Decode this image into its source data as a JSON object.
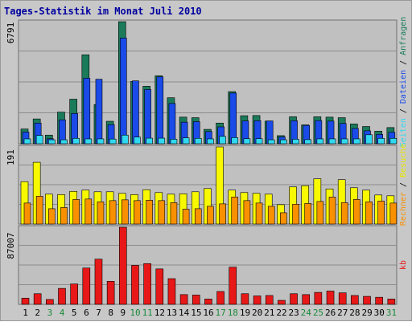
{
  "chart_data": {
    "type": "bar",
    "title": "Tages-Statistik im Monat Juli 2010",
    "x": [
      1,
      2,
      3,
      4,
      5,
      6,
      7,
      8,
      9,
      10,
      11,
      12,
      13,
      14,
      15,
      16,
      17,
      18,
      19,
      20,
      21,
      22,
      23,
      24,
      25,
      26,
      27,
      28,
      29,
      30,
      31
    ],
    "weekend_days": [
      3,
      4,
      10,
      11,
      17,
      18,
      24,
      25,
      31
    ],
    "panels": [
      {
        "id": "top",
        "max_label": "6791",
        "ymax": 6791,
        "series": [
          {
            "name": "Anfragen",
            "color": "#1a7a5a",
            "values": [
              820,
              1380,
              480,
              1760,
              2480,
              4950,
              2180,
              1250,
              6791,
              3470,
              3200,
              3780,
              2560,
              1480,
              1450,
              800,
              1150,
              2900,
              1560,
              1570,
              1260,
              450,
              1500,
              1050,
              1500,
              1480,
              1450,
              1100,
              960,
              700,
              900
            ]
          },
          {
            "name": "Dateien",
            "color": "#1a4ae8",
            "values": [
              650,
              1150,
              280,
              1330,
              1680,
              3650,
              3590,
              1060,
              5880,
              3500,
              3020,
              3720,
              2240,
              1200,
              1230,
              680,
              940,
              2820,
              1270,
              1280,
              1270,
              380,
              1280,
              1020,
              1290,
              1260,
              1130,
              850,
              720,
              520,
              640
            ]
          },
          {
            "name": "Seiten",
            "color": "#30d8f0",
            "values": [
              270,
              460,
              220,
              220,
              300,
              270,
              270,
              260,
              480,
              370,
              310,
              310,
              250,
              330,
              300,
              270,
              410,
              340,
              280,
              280,
              220,
              220,
              250,
              230,
              270,
              270,
              270,
              270,
              500,
              300,
              300
            ]
          }
        ]
      },
      {
        "id": "mid",
        "max_label": "191",
        "ymax": 191,
        "series": [
          {
            "name": "Besuche",
            "color": "#f8f800",
            "values": [
              105,
              153,
              74,
              73,
              81,
              84,
              80,
              80,
              76,
              73,
              85,
              78,
              74,
              75,
              80,
              88,
              191,
              84,
              78,
              76,
              74,
              48,
              92,
              95,
              112,
              87,
              110,
              90,
              84,
              72,
              70
            ]
          },
          {
            "name": "Rechner",
            "color": "#f89000",
            "values": [
              52,
              69,
              38,
              41,
              61,
              62,
              55,
              58,
              60,
              58,
              59,
              58,
              53,
              37,
              38,
              44,
              50,
              67,
              58,
              52,
              44,
              28,
              49,
              51,
              56,
              67,
              53,
              61,
              55,
              57,
              52
            ]
          }
        ]
      },
      {
        "id": "bot",
        "max_label": "87007",
        "ymax": 87007,
        "series": [
          {
            "name": "kb",
            "color": "#e81818",
            "values": [
              7000,
              12000,
              5500,
              18000,
              23000,
              41000,
              51000,
              26000,
              87007,
              44000,
              46000,
              40000,
              29000,
              11000,
              10500,
              6000,
              14500,
              42000,
              12000,
              9500,
              10000,
              4500,
              12000,
              11000,
              13500,
              15000,
              13000,
              10000,
              9000,
              8000,
              6000
            ]
          }
        ]
      }
    ],
    "right_labels": {
      "top": [
        "Anfragen",
        "Dateien",
        "Seiten"
      ],
      "mid": [
        "Besuche",
        "Rechner"
      ],
      "bot": [
        "kb"
      ]
    },
    "separator": " / "
  }
}
